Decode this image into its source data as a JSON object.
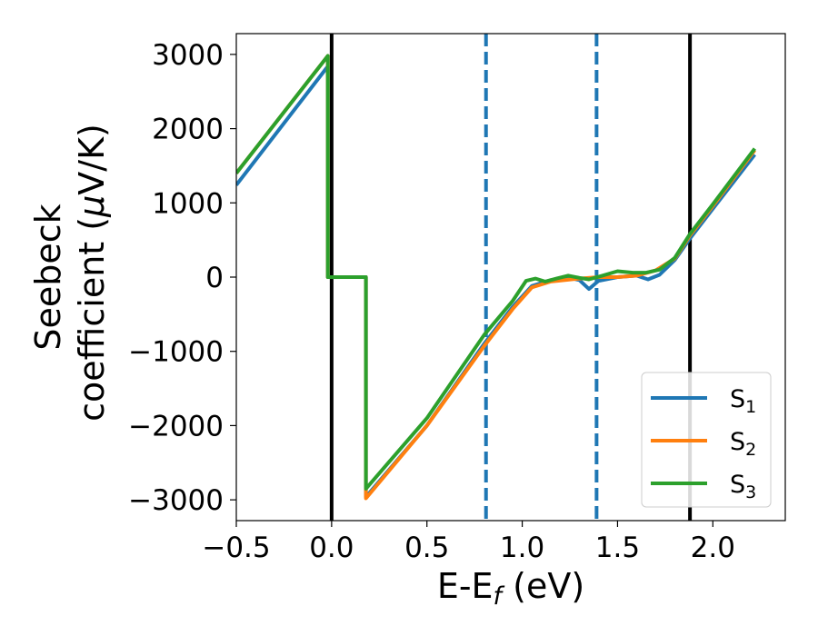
{
  "chart_data": {
    "type": "line",
    "title": "",
    "xlabel": "E-E",
    "xlabel_subscript": "f",
    "xlabel_unit": " (eV)",
    "ylabel_line1": "Seebeck",
    "ylabel_line2": "coefficient  (",
    "ylabel_mu": "μ",
    "ylabel_unit": "V/K)",
    "xlim": [
      -0.5,
      2.38
    ],
    "ylim": [
      -3280,
      3280
    ],
    "xticks": [
      -0.5,
      0.0,
      0.5,
      1.0,
      1.5,
      2.0
    ],
    "xtick_labels": [
      "−0.5",
      "0.0",
      "0.5",
      "1.0",
      "1.5",
      "2.0"
    ],
    "yticks": [
      3000,
      2000,
      1000,
      0,
      -1000,
      -2000,
      -3000
    ],
    "ytick_labels": [
      "3000",
      "2000",
      "1000",
      "0",
      "−1000",
      "−2000",
      "−3000"
    ],
    "grid": false,
    "legend_position": "bottom-right",
    "vertical_lines": [
      {
        "x": 0.0,
        "style": "solid",
        "color": "#000000"
      },
      {
        "x": 1.88,
        "style": "solid",
        "color": "#000000"
      },
      {
        "x": 0.81,
        "style": "dashed",
        "color": "#1f77b4"
      },
      {
        "x": 1.39,
        "style": "dashed",
        "color": "#1f77b4"
      }
    ],
    "series": [
      {
        "name": "S",
        "sub": "1",
        "color": "#1f77b4",
        "points": [
          [
            -0.5,
            1240
          ],
          [
            -0.02,
            2840
          ],
          [
            -0.02,
            0
          ],
          [
            0.18,
            0
          ],
          [
            0.18,
            -2960
          ],
          [
            0.5,
            -2000
          ],
          [
            0.8,
            -900
          ],
          [
            0.95,
            -400
          ],
          [
            1.05,
            -120
          ],
          [
            1.15,
            -40
          ],
          [
            1.25,
            -10
          ],
          [
            1.3,
            -40
          ],
          [
            1.35,
            -160
          ],
          [
            1.4,
            -50
          ],
          [
            1.5,
            0
          ],
          [
            1.6,
            20
          ],
          [
            1.66,
            -30
          ],
          [
            1.72,
            30
          ],
          [
            1.8,
            230
          ],
          [
            1.88,
            520
          ],
          [
            2.0,
            920
          ],
          [
            2.22,
            1650
          ]
        ]
      },
      {
        "name": "S",
        "sub": "2",
        "color": "#ff7f0e",
        "points": [
          [
            -0.5,
            1400
          ],
          [
            -0.02,
            2980
          ],
          [
            -0.02,
            0
          ],
          [
            0.18,
            0
          ],
          [
            0.18,
            -2980
          ],
          [
            0.5,
            -2000
          ],
          [
            0.8,
            -930
          ],
          [
            0.95,
            -430
          ],
          [
            1.05,
            -140
          ],
          [
            1.15,
            -60
          ],
          [
            1.3,
            -20
          ],
          [
            1.4,
            0
          ],
          [
            1.5,
            0
          ],
          [
            1.6,
            20
          ],
          [
            1.7,
            90
          ],
          [
            1.8,
            250
          ],
          [
            1.88,
            560
          ],
          [
            2.0,
            960
          ],
          [
            2.22,
            1710
          ]
        ]
      },
      {
        "name": "S",
        "sub": "3",
        "color": "#2ca02c",
        "points": [
          [
            -0.5,
            1400
          ],
          [
            -0.02,
            2980
          ],
          [
            -0.02,
            0
          ],
          [
            0.18,
            0
          ],
          [
            0.18,
            -2850
          ],
          [
            0.5,
            -1900
          ],
          [
            0.8,
            -780
          ],
          [
            0.95,
            -320
          ],
          [
            1.02,
            -50
          ],
          [
            1.07,
            -20
          ],
          [
            1.12,
            -60
          ],
          [
            1.18,
            -20
          ],
          [
            1.24,
            20
          ],
          [
            1.3,
            -10
          ],
          [
            1.35,
            -30
          ],
          [
            1.42,
            20
          ],
          [
            1.5,
            80
          ],
          [
            1.58,
            60
          ],
          [
            1.65,
            60
          ],
          [
            1.72,
            100
          ],
          [
            1.8,
            260
          ],
          [
            1.88,
            580
          ],
          [
            2.0,
            980
          ],
          [
            2.22,
            1730
          ]
        ]
      }
    ]
  }
}
